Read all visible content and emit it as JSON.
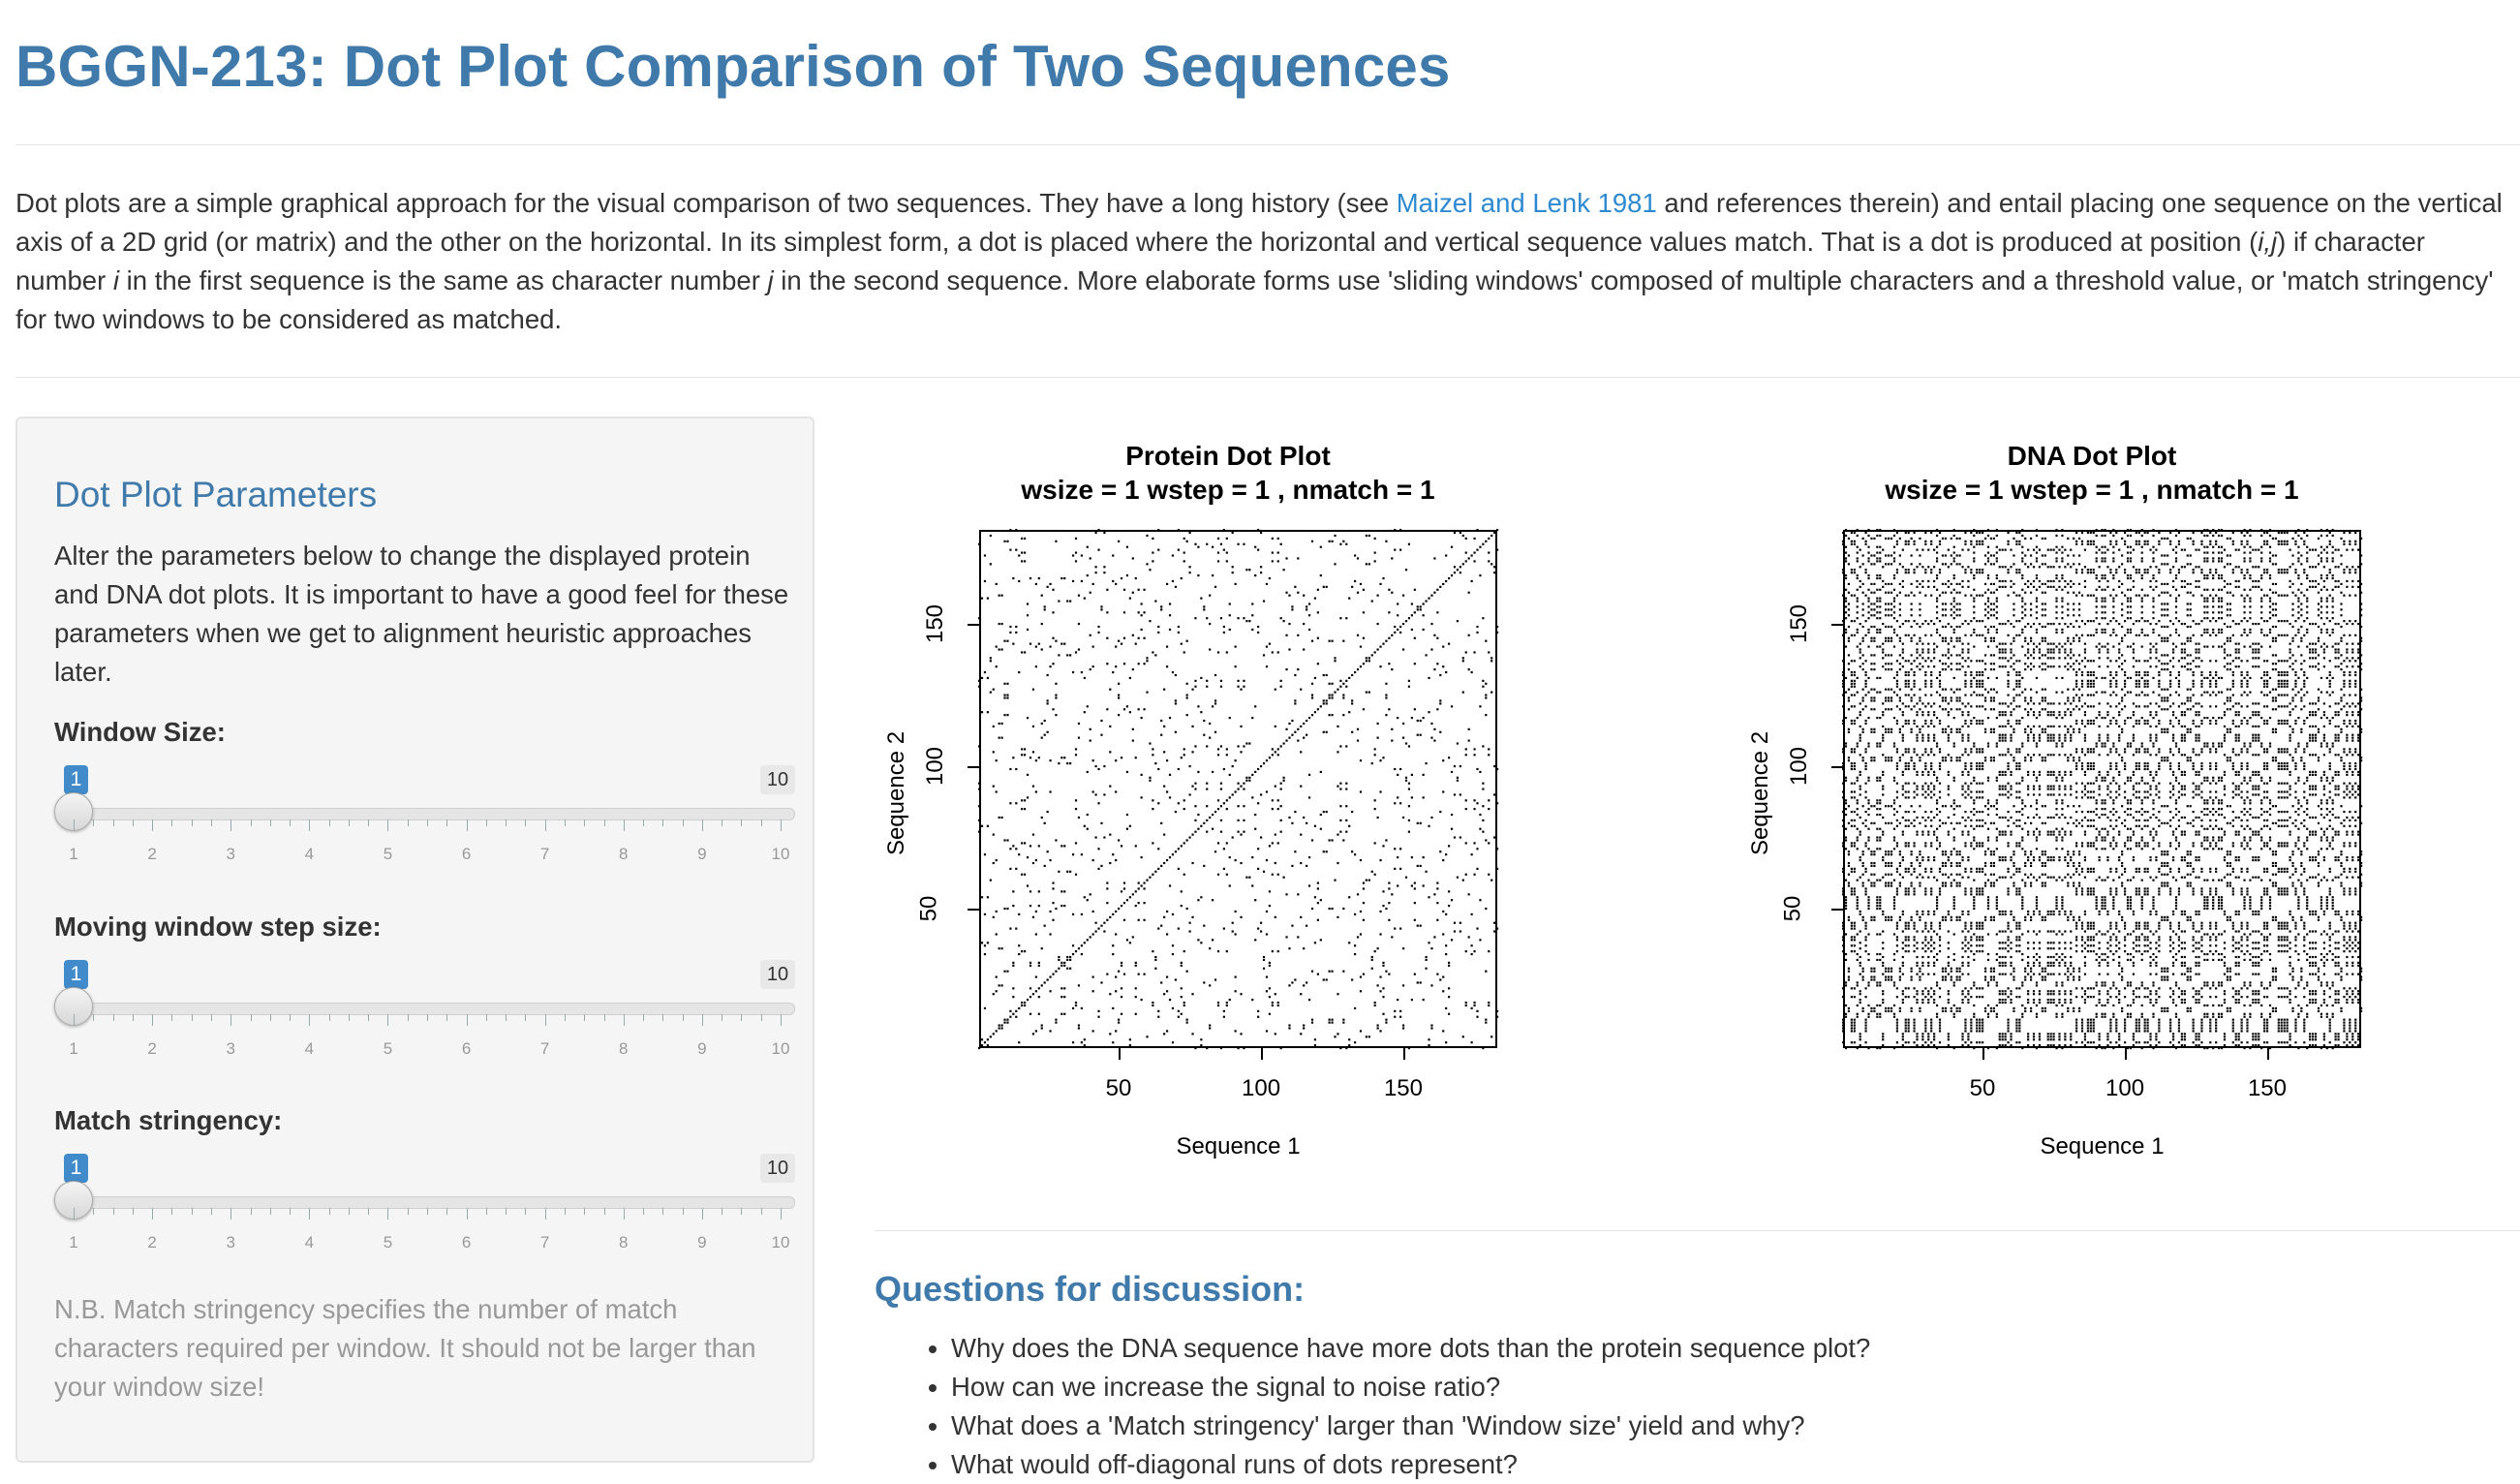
{
  "page": {
    "title": "BGGN-213: Dot Plot Comparison of Two Sequences",
    "intro": {
      "part1": "Dot plots are a simple graphical approach for the visual comparison of two sequences. They have a long history (see ",
      "link": "Maizel and Lenk 1981",
      "part2": " and references therein) and entail placing one sequence on the vertical axis of a 2D grid (or matrix) and the other on the horizontal. In its simplest form, a dot is placed where the horizontal and vertical sequence values match. That is a dot is produced at position (",
      "ij": "i,j",
      "part3": ") if character number ",
      "i": "i",
      "part4": " in the first sequence is the same as character number ",
      "j": "j",
      "part5": " in the second sequence. More elaborate forms use 'sliding windows' composed of multiple characters and a threshold value, or 'match stringency' for two windows to be considered as matched."
    }
  },
  "sidebar": {
    "heading": "Dot Plot Parameters",
    "description": "Alter the parameters below to change the displayed protein and DNA dot plots. It is important to have a good feel for these parameters when we get to alignment heuristic approaches later.",
    "sliders": [
      {
        "label": "Window Size:",
        "value": "1",
        "max": "10"
      },
      {
        "label": "Moving window step size:",
        "value": "1",
        "max": "10"
      },
      {
        "label": "Match stringency:",
        "value": "1",
        "max": "10"
      }
    ],
    "tick_labels": [
      "1",
      "2",
      "3",
      "4",
      "5",
      "6",
      "7",
      "8",
      "9",
      "10"
    ],
    "note": "N.B. Match stringency specifies the number of match characters required per window. It should not be larger than your window size!"
  },
  "chart_data": [
    {
      "type": "scatter",
      "title": "Protein Dot Plot",
      "subtitle": "wsize = 1  wstep = 1 , nmatch = 1",
      "xlabel": "Sequence 1",
      "ylabel": "Sequence 2",
      "xticks": [
        "50",
        "100",
        "150"
      ],
      "yticks": [
        "50",
        "100",
        "150"
      ],
      "xlim": [
        1,
        183
      ],
      "ylim": [
        1,
        183
      ],
      "diagonal": true,
      "density": 0.06,
      "seed": 7
    },
    {
      "type": "scatter",
      "title": "DNA Dot Plot",
      "subtitle": "wsize = 1  wstep = 1 , nmatch = 1",
      "xlabel": "Sequence 1",
      "ylabel": "Sequence 2",
      "xticks": [
        "50",
        "100",
        "150"
      ],
      "yticks": [
        "50",
        "100",
        "150"
      ],
      "xlim": [
        1,
        183
      ],
      "ylim": [
        1,
        183
      ],
      "diagonal": false,
      "density": 0.3,
      "seed": 13
    }
  ],
  "questions": {
    "heading": "Questions for discussion:",
    "items": [
      "Why does the DNA sequence have more dots than the protein sequence plot?",
      "How can we increase the signal to noise ratio?",
      "What does a 'Match stringency' larger than 'Window size' yield and why?",
      "What would off-diagonal runs of dots represent?"
    ]
  }
}
